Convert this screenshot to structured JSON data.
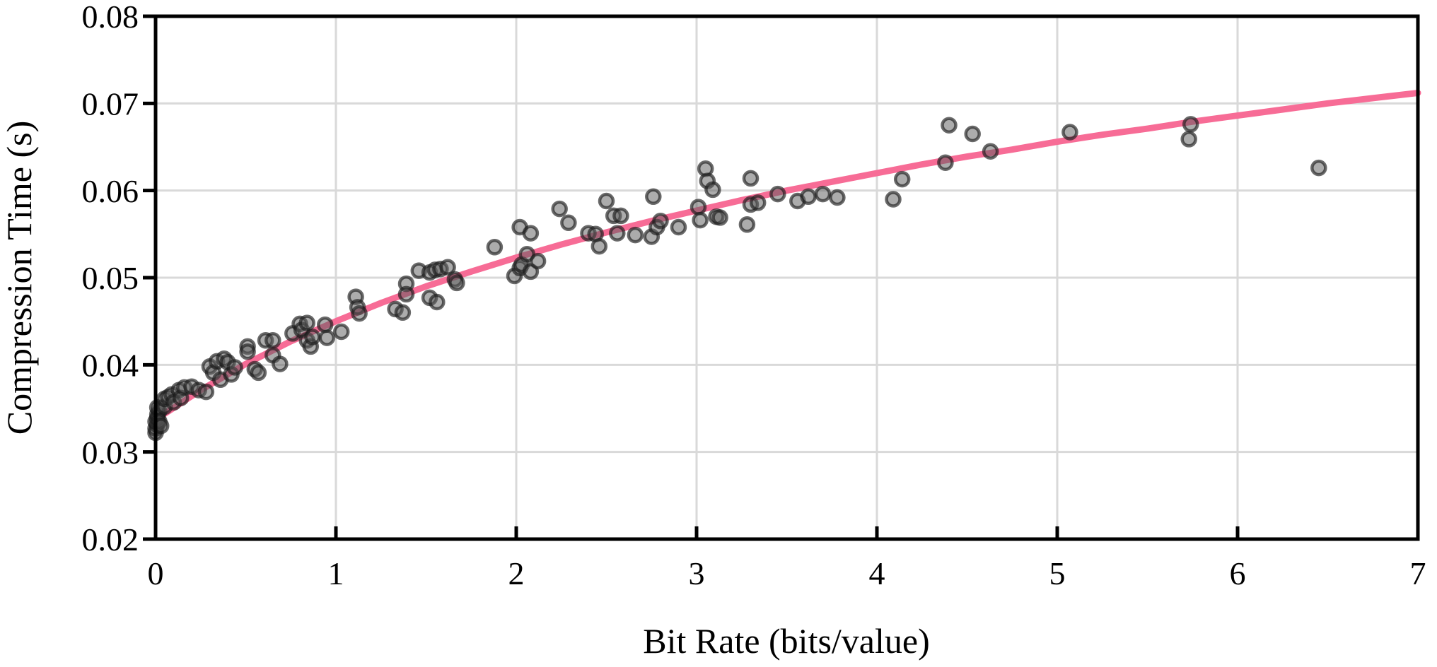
{
  "figure": {
    "xlabel": "Bit Rate (bits/value)",
    "ylabel": "Compression Time (s)"
  },
  "chart_data": {
    "type": "scatter",
    "title": "",
    "xlabel": "Bit Rate (bits/value)",
    "ylabel": "Compression Time (s)",
    "xlim": [
      0,
      7
    ],
    "ylim": [
      0.02,
      0.08
    ],
    "x_ticks": [
      0,
      1,
      2,
      3,
      4,
      5,
      6,
      7
    ],
    "x_tick_labels": [
      "0",
      "1",
      "2",
      "3",
      "4",
      "5",
      "6",
      "7"
    ],
    "y_ticks": [
      0.02,
      0.03,
      0.04,
      0.05,
      0.06,
      0.07,
      0.08
    ],
    "y_tick_labels": [
      "0.02",
      "0.03",
      "0.04",
      "0.05",
      "0.06",
      "0.07",
      "0.08"
    ],
    "grid": true,
    "legend": "none",
    "colors": {
      "trend_line": "#f76c96",
      "marker_fill": "#5a5a5a",
      "marker_edge": "#1a1a1a",
      "gridline": "#d9d9d9",
      "axis": "#000000",
      "text": "#000000",
      "background": "#ffffff"
    },
    "series": [
      {
        "name": "compression-time-measurements",
        "type": "scatter",
        "points": [
          [
            0.0,
            0.0322
          ],
          [
            0.0,
            0.0327
          ],
          [
            0.01,
            0.0331
          ],
          [
            0.0,
            0.0335
          ],
          [
            0.01,
            0.0339
          ],
          [
            0.01,
            0.0343
          ],
          [
            0.02,
            0.0347
          ],
          [
            0.01,
            0.0351
          ],
          [
            0.02,
            0.0335
          ],
          [
            0.03,
            0.033
          ],
          [
            0.05,
            0.0352
          ],
          [
            0.05,
            0.0361
          ],
          [
            0.07,
            0.0363
          ],
          [
            0.09,
            0.0366
          ],
          [
            0.1,
            0.0357
          ],
          [
            0.13,
            0.0371
          ],
          [
            0.14,
            0.0362
          ],
          [
            0.16,
            0.0374
          ],
          [
            0.2,
            0.0375
          ],
          [
            0.24,
            0.0371
          ],
          [
            0.28,
            0.0369
          ],
          [
            0.3,
            0.0398
          ],
          [
            0.32,
            0.0391
          ],
          [
            0.34,
            0.0404
          ],
          [
            0.36,
            0.0383
          ],
          [
            0.38,
            0.0407
          ],
          [
            0.4,
            0.0403
          ],
          [
            0.42,
            0.0389
          ],
          [
            0.44,
            0.0397
          ],
          [
            0.51,
            0.0421
          ],
          [
            0.51,
            0.0415
          ],
          [
            0.55,
            0.0395
          ],
          [
            0.57,
            0.0391
          ],
          [
            0.61,
            0.0428
          ],
          [
            0.65,
            0.0428
          ],
          [
            0.65,
            0.0411
          ],
          [
            0.69,
            0.0401
          ],
          [
            0.76,
            0.0436
          ],
          [
            0.8,
            0.0447
          ],
          [
            0.81,
            0.044
          ],
          [
            0.84,
            0.0448
          ],
          [
            0.84,
            0.0428
          ],
          [
            0.86,
            0.0421
          ],
          [
            0.87,
            0.0432
          ],
          [
            0.94,
            0.0446
          ],
          [
            0.95,
            0.0431
          ],
          [
            1.03,
            0.0438
          ],
          [
            1.11,
            0.0478
          ],
          [
            1.12,
            0.0466
          ],
          [
            1.13,
            0.0459
          ],
          [
            1.33,
            0.0464
          ],
          [
            1.37,
            0.046
          ],
          [
            1.39,
            0.0493
          ],
          [
            1.39,
            0.0481
          ],
          [
            1.46,
            0.0508
          ],
          [
            1.52,
            0.0506
          ],
          [
            1.52,
            0.0477
          ],
          [
            1.55,
            0.0509
          ],
          [
            1.56,
            0.0472
          ],
          [
            1.58,
            0.051
          ],
          [
            1.62,
            0.0512
          ],
          [
            1.66,
            0.0498
          ],
          [
            1.67,
            0.0494
          ],
          [
            1.88,
            0.0535
          ],
          [
            1.99,
            0.0502
          ],
          [
            2.02,
            0.0511
          ],
          [
            2.02,
            0.0558
          ],
          [
            2.03,
            0.0515
          ],
          [
            2.06,
            0.0527
          ],
          [
            2.08,
            0.0551
          ],
          [
            2.08,
            0.0507
          ],
          [
            2.12,
            0.0519
          ],
          [
            2.24,
            0.0579
          ],
          [
            2.29,
            0.0563
          ],
          [
            2.4,
            0.0551
          ],
          [
            2.44,
            0.055
          ],
          [
            2.46,
            0.0536
          ],
          [
            2.5,
            0.0588
          ],
          [
            2.54,
            0.0571
          ],
          [
            2.58,
            0.0571
          ],
          [
            2.56,
            0.0551
          ],
          [
            2.66,
            0.0549
          ],
          [
            2.75,
            0.0547
          ],
          [
            2.76,
            0.0593
          ],
          [
            2.78,
            0.0558
          ],
          [
            2.8,
            0.0565
          ],
          [
            2.9,
            0.0558
          ],
          [
            3.01,
            0.0581
          ],
          [
            3.02,
            0.0566
          ],
          [
            3.05,
            0.0625
          ],
          [
            3.06,
            0.0611
          ],
          [
            3.09,
            0.0601
          ],
          [
            3.11,
            0.057
          ],
          [
            3.13,
            0.0569
          ],
          [
            3.28,
            0.0561
          ],
          [
            3.3,
            0.0584
          ],
          [
            3.3,
            0.0614
          ],
          [
            3.34,
            0.0586
          ],
          [
            3.45,
            0.0596
          ],
          [
            3.56,
            0.0588
          ],
          [
            3.62,
            0.0593
          ],
          [
            3.7,
            0.0596
          ],
          [
            3.78,
            0.0592
          ],
          [
            4.09,
            0.059
          ],
          [
            4.14,
            0.0613
          ],
          [
            4.38,
            0.0632
          ],
          [
            4.4,
            0.0675
          ],
          [
            4.53,
            0.0665
          ],
          [
            4.63,
            0.0645
          ],
          [
            5.07,
            0.0667
          ],
          [
            5.73,
            0.0659
          ],
          [
            5.74,
            0.0676
          ],
          [
            6.45,
            0.0626
          ]
        ]
      },
      {
        "name": "logarithmic-trend-line",
        "type": "line",
        "points": [
          [
            0,
            0.0337
          ],
          [
            0.25,
            0.0371
          ],
          [
            0.5,
            0.0401
          ],
          [
            0.75,
            0.0427
          ],
          [
            1,
            0.045
          ],
          [
            1.25,
            0.0471
          ],
          [
            1.5,
            0.049
          ],
          [
            1.75,
            0.0507
          ],
          [
            2,
            0.0523
          ],
          [
            2.25,
            0.0538
          ],
          [
            2.5,
            0.0552
          ],
          [
            2.75,
            0.0565
          ],
          [
            3,
            0.0577
          ],
          [
            3.25,
            0.0589
          ],
          [
            3.5,
            0.06
          ],
          [
            3.75,
            0.061
          ],
          [
            4,
            0.062
          ],
          [
            4.25,
            0.063
          ],
          [
            4.5,
            0.0639
          ],
          [
            4.75,
            0.0647
          ],
          [
            5,
            0.0656
          ],
          [
            5.25,
            0.0664
          ],
          [
            5.5,
            0.0671
          ],
          [
            5.75,
            0.0679
          ],
          [
            6,
            0.0686
          ],
          [
            6.25,
            0.0693
          ],
          [
            6.5,
            0.07
          ],
          [
            6.75,
            0.0706
          ],
          [
            7,
            0.0712
          ]
        ]
      }
    ]
  }
}
